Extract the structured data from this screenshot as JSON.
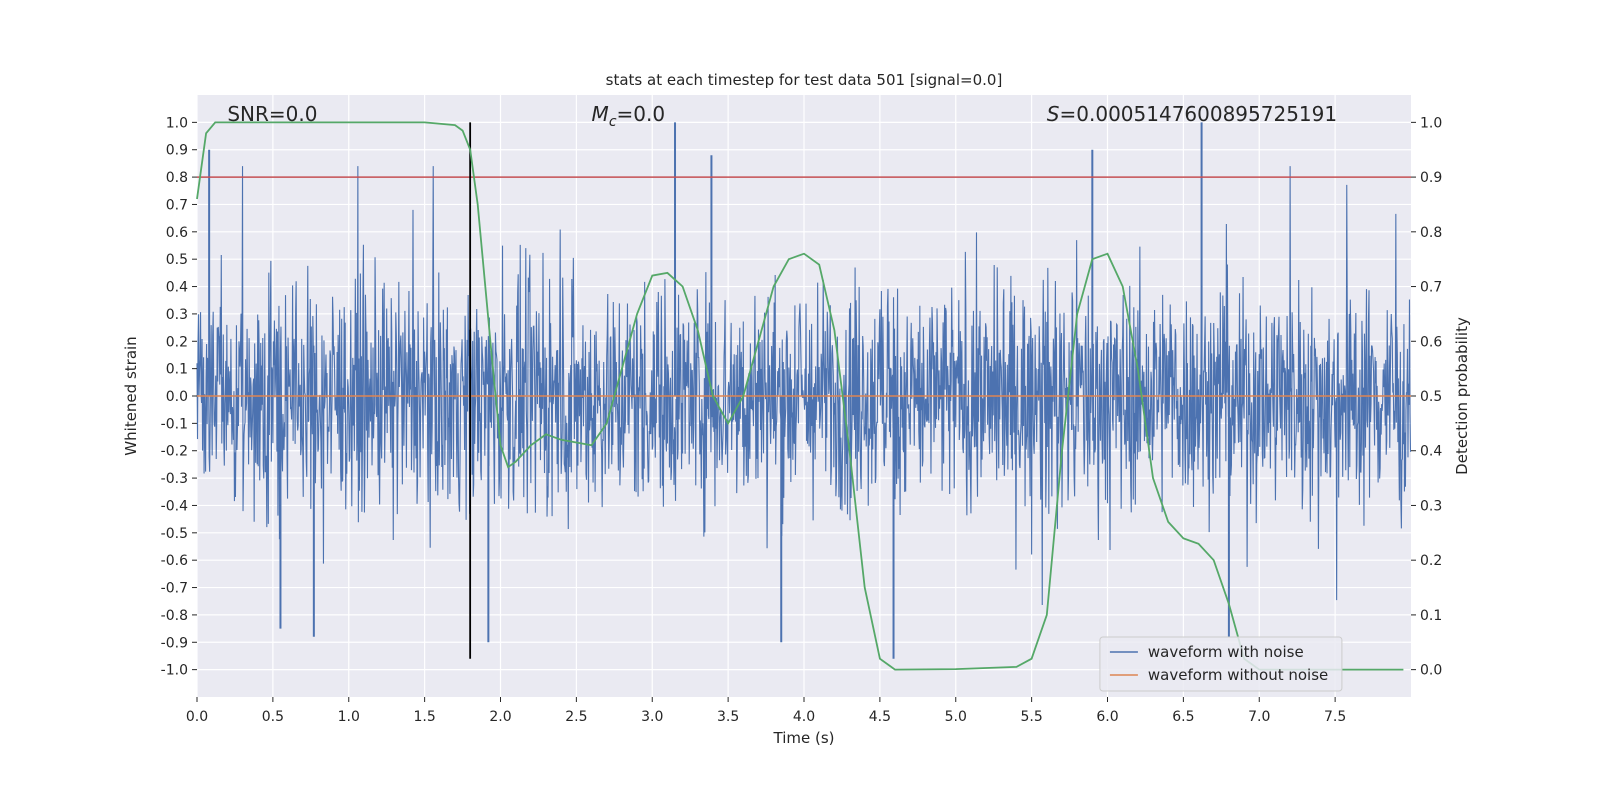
{
  "chart_data": {
    "type": "line",
    "title": "stats at each timestep for test data 501 [signal=0.0]",
    "xlabel": "Time (s)",
    "ylabel": "Whitened strain",
    "y2label": "Detection probability",
    "xlim": [
      0.0,
      8.0
    ],
    "ylim": [
      -1.1,
      1.1
    ],
    "y2lim": [
      -0.05,
      1.05
    ],
    "xticks": [
      0.0,
      0.5,
      1.0,
      1.5,
      2.0,
      2.5,
      3.0,
      3.5,
      4.0,
      4.5,
      5.0,
      5.5,
      6.0,
      6.5,
      7.0,
      7.5
    ],
    "yticks": [
      -1.0,
      -0.9,
      -0.8,
      -0.7,
      -0.6,
      -0.5,
      -0.4,
      -0.3,
      -0.2,
      -0.1,
      0.0,
      0.1,
      0.2,
      0.3,
      0.4,
      0.5,
      0.6,
      0.7,
      0.8,
      0.9,
      1.0
    ],
    "y2ticks": [
      0.0,
      0.1,
      0.2,
      0.3,
      0.4,
      0.5,
      0.6,
      0.7,
      0.8,
      0.9,
      1.0
    ],
    "grid": true,
    "annotations": {
      "snr_label": "SNR=0.0",
      "mc_prefix": "M",
      "mc_sub": "c",
      "mc_suffix": "=0.0",
      "s_prefix": "S",
      "s_value": "=0.0005147600895725191"
    },
    "threshold": 0.9,
    "marker_time": 1.8,
    "legend": {
      "position": "bottom-right",
      "entries": [
        "waveform with noise",
        "waveform without noise"
      ]
    },
    "series": [
      {
        "name": "waveform with noise",
        "color": "#4c72b0",
        "axis": "left",
        "description": "dense whitened noise, amplitude roughly within -0.95..1.0",
        "peaks": [
          {
            "t": 0.08,
            "v": 0.9
          },
          {
            "t": 0.55,
            "v": -0.85
          },
          {
            "t": 0.77,
            "v": -0.88
          },
          {
            "t": 1.92,
            "v": -0.9
          },
          {
            "t": 3.15,
            "v": 1.0
          },
          {
            "t": 3.39,
            "v": 0.88
          },
          {
            "t": 3.85,
            "v": -0.9
          },
          {
            "t": 4.59,
            "v": -0.96
          },
          {
            "t": 5.9,
            "v": 0.9
          },
          {
            "t": 6.62,
            "v": 1.0
          },
          {
            "t": 6.8,
            "v": -0.88
          }
        ]
      },
      {
        "name": "waveform without noise",
        "color": "#dd8452",
        "axis": "left",
        "description": "flat at zero",
        "values": [
          [
            0.0,
            0.0
          ],
          [
            8.0,
            0.0
          ]
        ]
      },
      {
        "name": "detection probability",
        "color": "#55a868",
        "axis": "right",
        "values": [
          [
            0.0,
            0.86
          ],
          [
            0.06,
            0.98
          ],
          [
            0.12,
            1.0
          ],
          [
            1.5,
            1.0
          ],
          [
            1.7,
            0.995
          ],
          [
            1.75,
            0.985
          ],
          [
            1.8,
            0.95
          ],
          [
            1.85,
            0.85
          ],
          [
            1.9,
            0.7
          ],
          [
            1.95,
            0.55
          ],
          [
            2.0,
            0.41
          ],
          [
            2.05,
            0.37
          ],
          [
            2.1,
            0.38
          ],
          [
            2.2,
            0.41
          ],
          [
            2.3,
            0.43
          ],
          [
            2.4,
            0.42
          ],
          [
            2.5,
            0.415
          ],
          [
            2.6,
            0.41
          ],
          [
            2.7,
            0.45
          ],
          [
            2.8,
            0.55
          ],
          [
            2.9,
            0.65
          ],
          [
            3.0,
            0.72
          ],
          [
            3.1,
            0.725
          ],
          [
            3.2,
            0.7
          ],
          [
            3.3,
            0.62
          ],
          [
            3.4,
            0.5
          ],
          [
            3.5,
            0.45
          ],
          [
            3.6,
            0.5
          ],
          [
            3.7,
            0.6
          ],
          [
            3.8,
            0.7
          ],
          [
            3.9,
            0.75
          ],
          [
            4.0,
            0.76
          ],
          [
            4.1,
            0.74
          ],
          [
            4.2,
            0.62
          ],
          [
            4.3,
            0.4
          ],
          [
            4.4,
            0.15
          ],
          [
            4.5,
            0.02
          ],
          [
            4.6,
            0.0
          ],
          [
            5.0,
            0.001
          ],
          [
            5.4,
            0.005
          ],
          [
            5.5,
            0.02
          ],
          [
            5.6,
            0.1
          ],
          [
            5.7,
            0.4
          ],
          [
            5.8,
            0.65
          ],
          [
            5.9,
            0.75
          ],
          [
            6.0,
            0.76
          ],
          [
            6.1,
            0.7
          ],
          [
            6.2,
            0.55
          ],
          [
            6.3,
            0.35
          ],
          [
            6.4,
            0.27
          ],
          [
            6.5,
            0.24
          ],
          [
            6.6,
            0.23
          ],
          [
            6.7,
            0.2
          ],
          [
            6.8,
            0.12
          ],
          [
            6.9,
            0.02
          ],
          [
            7.0,
            0.0
          ],
          [
            8.0,
            0.0
          ]
        ]
      }
    ]
  }
}
